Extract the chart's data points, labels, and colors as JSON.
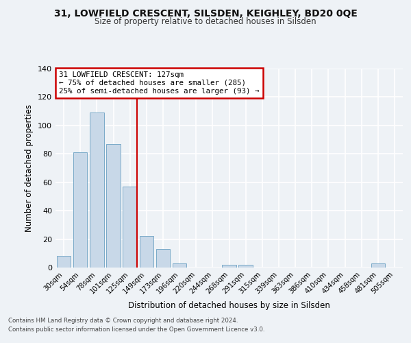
{
  "title1": "31, LOWFIELD CRESCENT, SILSDEN, KEIGHLEY, BD20 0QE",
  "title2": "Size of property relative to detached houses in Silsden",
  "xlabel": "Distribution of detached houses by size in Silsden",
  "ylabel": "Number of detached properties",
  "bar_labels": [
    "30sqm",
    "54sqm",
    "78sqm",
    "101sqm",
    "125sqm",
    "149sqm",
    "173sqm",
    "196sqm",
    "220sqm",
    "244sqm",
    "268sqm",
    "291sqm",
    "315sqm",
    "339sqm",
    "363sqm",
    "386sqm",
    "410sqm",
    "434sqm",
    "458sqm",
    "481sqm",
    "505sqm"
  ],
  "bar_values": [
    8,
    81,
    109,
    87,
    57,
    22,
    13,
    3,
    0,
    0,
    2,
    2,
    0,
    0,
    0,
    0,
    0,
    0,
    0,
    3,
    0
  ],
  "bar_color": "#c8d8e8",
  "bar_edge_color": "#7aaac8",
  "vline_color": "#cc0000",
  "annotation_title": "31 LOWFIELD CRESCENT: 127sqm",
  "annotation_line1": "← 75% of detached houses are smaller (285)",
  "annotation_line2": "25% of semi-detached houses are larger (93) →",
  "annotation_box_facecolor": "#ffffff",
  "annotation_box_edgecolor": "#cc0000",
  "ylim": [
    0,
    140
  ],
  "yticks": [
    0,
    20,
    40,
    60,
    80,
    100,
    120,
    140
  ],
  "footer_line1": "Contains HM Land Registry data © Crown copyright and database right 2024.",
  "footer_line2": "Contains public sector information licensed under the Open Government Licence v3.0.",
  "bg_color": "#eef2f6",
  "grid_color": "#ffffff"
}
